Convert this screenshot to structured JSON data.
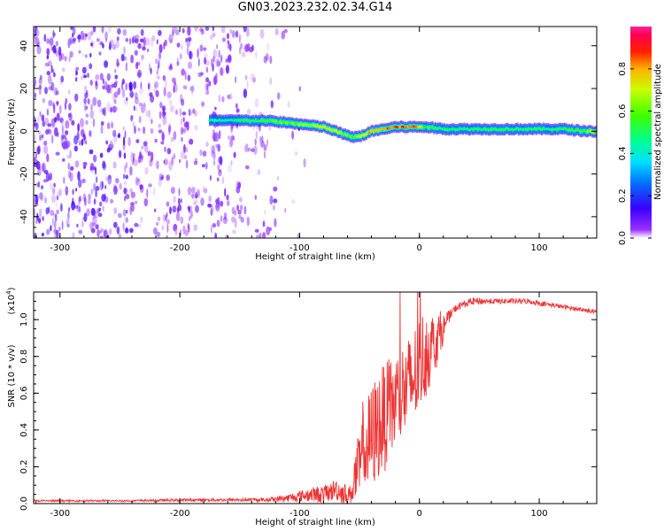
{
  "title": "GN03.2023.232.02.34.G14",
  "chart_data": [
    {
      "type": "heatmap",
      "xlabel": "Height of straight line (km)",
      "ylabel": "Frequency (Hz)",
      "xlim": [
        -322,
        148
      ],
      "ylim": [
        -50,
        49
      ],
      "x_ticks": [
        "-300",
        "-200",
        "-100",
        "0",
        "100"
      ],
      "x_tick_values": [
        -300,
        -200,
        -100,
        0,
        100
      ],
      "y_ticks": [
        "-40",
        "-20",
        "0",
        "20",
        "40"
      ],
      "y_tick_values": [
        -40,
        -20,
        0,
        20,
        40
      ],
      "colorbar": {
        "label": "Normalized spectral amplitude",
        "range": [
          0,
          1
        ],
        "ticks": [
          "0.0",
          "0.2",
          "0.4",
          "0.6",
          "0.8"
        ],
        "tick_values": [
          0.0,
          0.2,
          0.4,
          0.6,
          0.8
        ],
        "colormap": "rainbow"
      },
      "noise_region_x": [
        -322,
        -120
      ],
      "ridge": {
        "x": [
          -175,
          -150,
          -130,
          -110,
          -95,
          -80,
          -70,
          -60,
          -55,
          -48,
          -40,
          -30,
          -20,
          -10,
          0,
          5,
          20,
          50,
          80,
          100,
          120,
          140,
          148
        ],
        "y": [
          5,
          5,
          5,
          4,
          3,
          2,
          0,
          -2,
          -3,
          -2,
          0,
          1,
          2,
          2,
          2,
          2,
          1,
          1,
          1,
          1,
          1,
          0,
          0
        ],
        "amplitude": [
          0.45,
          0.5,
          0.55,
          0.6,
          0.65,
          0.7,
          0.72,
          0.6,
          0.58,
          0.7,
          0.8,
          0.82,
          0.85,
          0.85,
          0.8,
          0.55,
          0.5,
          0.5,
          0.5,
          0.5,
          0.5,
          0.6,
          0.9
        ]
      }
    },
    {
      "type": "line",
      "xlabel": "Height of straight line (km)",
      "ylabel": "SNR (10 * v/v)",
      "y_multiplier": "(x10",
      "y_multiplier_exp": "4",
      "y_multiplier_close": ")",
      "xlim": [
        -322,
        148
      ],
      "ylim": [
        0,
        1.15
      ],
      "x_ticks": [
        "-300",
        "-200",
        "-100",
        "0",
        "100"
      ],
      "x_tick_values": [
        -300,
        -200,
        -100,
        0,
        100
      ],
      "y_ticks": [
        "0.0",
        "0.2",
        "0.4",
        "0.6",
        "0.8",
        "1.0"
      ],
      "y_tick_values": [
        0.0,
        0.2,
        0.4,
        0.6,
        0.8,
        1.0
      ],
      "series": [
        {
          "color": "#ee3333",
          "x": [
            -322,
            -250,
            -180,
            -130,
            -110,
            -100,
            -90,
            -80,
            -75,
            -70,
            -65,
            -60,
            -57,
            -55,
            -50,
            -45,
            -40,
            -35,
            -30,
            -25,
            -20,
            -15,
            -10,
            -5,
            0,
            5,
            10,
            15,
            20,
            25,
            30,
            35,
            40,
            45,
            50,
            60,
            70,
            80,
            90,
            100,
            110,
            120,
            130,
            140,
            148
          ],
          "y": [
            0.015,
            0.015,
            0.02,
            0.02,
            0.03,
            0.04,
            0.05,
            0.05,
            0.06,
            0.08,
            0.06,
            0.05,
            0.05,
            0.12,
            0.2,
            0.3,
            0.35,
            0.42,
            0.46,
            0.5,
            0.55,
            0.6,
            0.62,
            0.68,
            0.75,
            0.82,
            0.85,
            0.9,
            0.95,
            1.02,
            1.06,
            1.08,
            1.09,
            1.1,
            1.1,
            1.1,
            1.1,
            1.1,
            1.1,
            1.09,
            1.08,
            1.07,
            1.06,
            1.05,
            1.04
          ],
          "noise": [
            0.005,
            0.005,
            0.008,
            0.01,
            0.02,
            0.03,
            0.04,
            0.05,
            0.05,
            0.06,
            0.06,
            0.05,
            0.05,
            0.12,
            0.2,
            0.25,
            0.3,
            0.3,
            0.3,
            0.28,
            0.28,
            0.28,
            0.28,
            0.28,
            0.28,
            0.25,
            0.2,
            0.15,
            0.08,
            0.03,
            0.02,
            0.02,
            0.02,
            0.02,
            0.02,
            0.015,
            0.015,
            0.015,
            0.015,
            0.015,
            0.012,
            0.012,
            0.012,
            0.012,
            0.012
          ]
        }
      ]
    }
  ]
}
